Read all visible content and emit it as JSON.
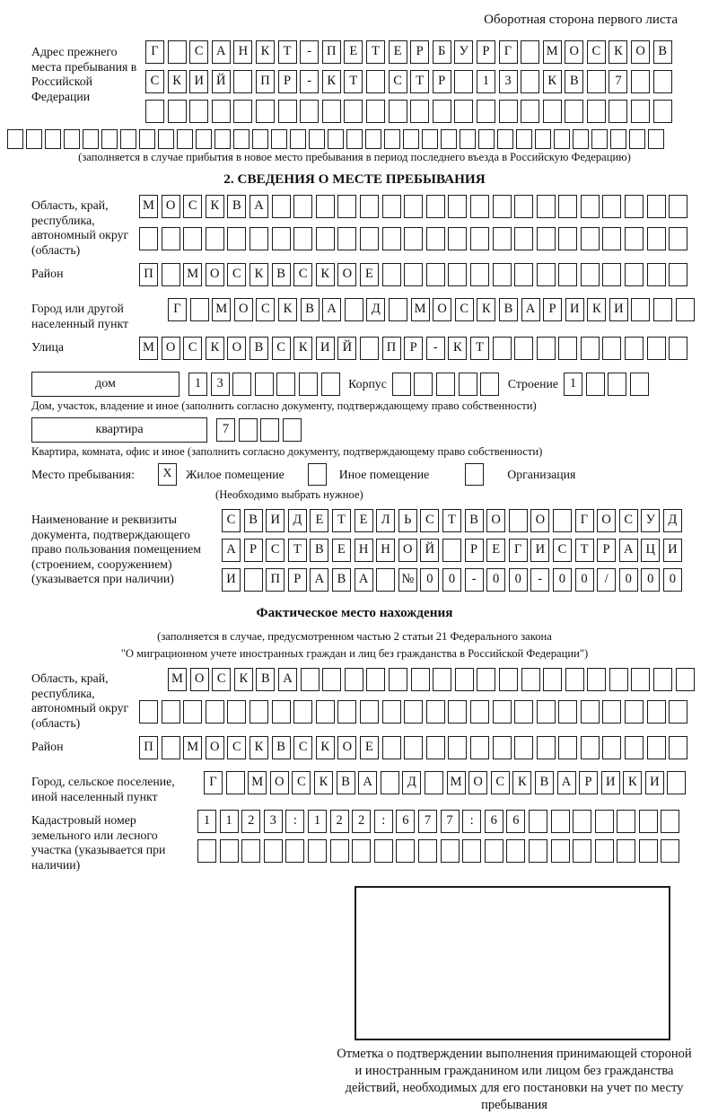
{
  "colors": {
    "ink": "#1c1c1c",
    "paper": "#ffffff"
  },
  "page": {
    "header_note": "Оборотная сторона первого листа"
  },
  "prev_address": {
    "label": "Адрес прежнего места пребывания в Российской Федерации",
    "rows": [
      {
        "v": "Г САНКТ-ПЕТЕРБУРГ МОСКОВ",
        "n": 24
      },
      {
        "v": "СКИЙ ПР-КТ СТР 13 КВ 7",
        "n": 24
      },
      {
        "v": "",
        "n": 24
      },
      {
        "v": "",
        "n": 35
      }
    ],
    "caption": "(заполняется в случае прибытия в новое место пребывания в период последнего въезда в Российскую Федерацию)"
  },
  "section2": {
    "title": "2. СВЕДЕНИЯ О МЕСТЕ ПРЕБЫВАНИЯ",
    "region": {
      "label": "Область, край, республика, автономный округ (область)",
      "rows": [
        {
          "v": "МОСКВА",
          "n": 25
        },
        {
          "v": "",
          "n": 25
        }
      ]
    },
    "district": {
      "label": "Район",
      "row": {
        "v": "П МОСКВСКОЕ",
        "n": 25
      }
    },
    "city": {
      "label": "Город или другой населенный пункт",
      "row": {
        "v": "Г МОСКВА Д МОСКВАРИКИ",
        "n": 24
      }
    },
    "street": {
      "label": "Улица",
      "row": {
        "v": "МОСКОВСКИЙ ПР-КТ",
        "n": 25
      }
    },
    "house": {
      "box_label": "дом",
      "cells": {
        "v": "13",
        "n": 7
      },
      "korpus_label": "Корпус",
      "korpus_cells": {
        "v": "",
        "n": 5
      },
      "stroenie_label": "Строение",
      "stroenie_cells": {
        "v": "1",
        "n": 4
      },
      "caption": "Дом, участок, владение и иное (заполнить согласно документу, подтверждающему право собственности)"
    },
    "apartment": {
      "box_label": "квартира",
      "cells": {
        "v": "7",
        "n": 4
      },
      "caption": "Квартира, комната, офис и иное (заполнить согласно документу, подтверждающему право собственности)"
    },
    "stay_type": {
      "label": "Место пребывания:",
      "options": [
        {
          "label": "Жилое помещение",
          "checked": "X"
        },
        {
          "label": "Иное помещение",
          "checked": ""
        },
        {
          "label": "Организация",
          "checked": ""
        }
      ],
      "caption": "(Необходимо выбрать нужное)"
    },
    "doc": {
      "label": "Наименование и реквизиты документа, подтверждающего право пользования помещением (строением, сооружением) (указывается при наличии)",
      "rows": [
        {
          "v": "СВИДЕТЕЛЬСТВО О ГОСУД",
          "n": 21
        },
        {
          "v": "АРСТВЕННОЙ РЕГИСТРАЦИ",
          "n": 21
        },
        {
          "v": "И ПРАВА №00-00-00/000",
          "n": 21
        }
      ]
    }
  },
  "actual_location": {
    "title": "Фактическое место нахождения",
    "caption_line1": "(заполняется в случае, предусмотренном частью 2 статьи 21 Федерального закона",
    "caption_line2": "\"О миграционном учете иностранных граждан и лиц без гражданства в Российской Федерации\")",
    "region": {
      "label": "Область, край, республика, автономный округ (область)",
      "rows": [
        {
          "v": "МОСКВА",
          "n": 24
        },
        {
          "v": "",
          "n": 25
        }
      ]
    },
    "district": {
      "label": "Район",
      "row": {
        "v": "П МОСКВСКОЕ",
        "n": 25
      }
    },
    "city": {
      "label": "Город, сельское поселение, иной населенный пункт",
      "row": {
        "v": "Г МОСКВА Д МОСКВАРИКИ",
        "n": 22
      }
    },
    "cadastral": {
      "label": "Кадастровый номер земельного или лесного участка (указывается при наличии)",
      "rows": [
        {
          "v": "1123:122:677:66",
          "n": 22
        },
        {
          "v": "",
          "n": 22
        }
      ]
    },
    "stamp_note": "Отметка о подтверждении выполнения принимающей стороной и иностранным гражданином или лицом без гражданства действий, необходимых для его постановки на учет по месту пребывания"
  }
}
